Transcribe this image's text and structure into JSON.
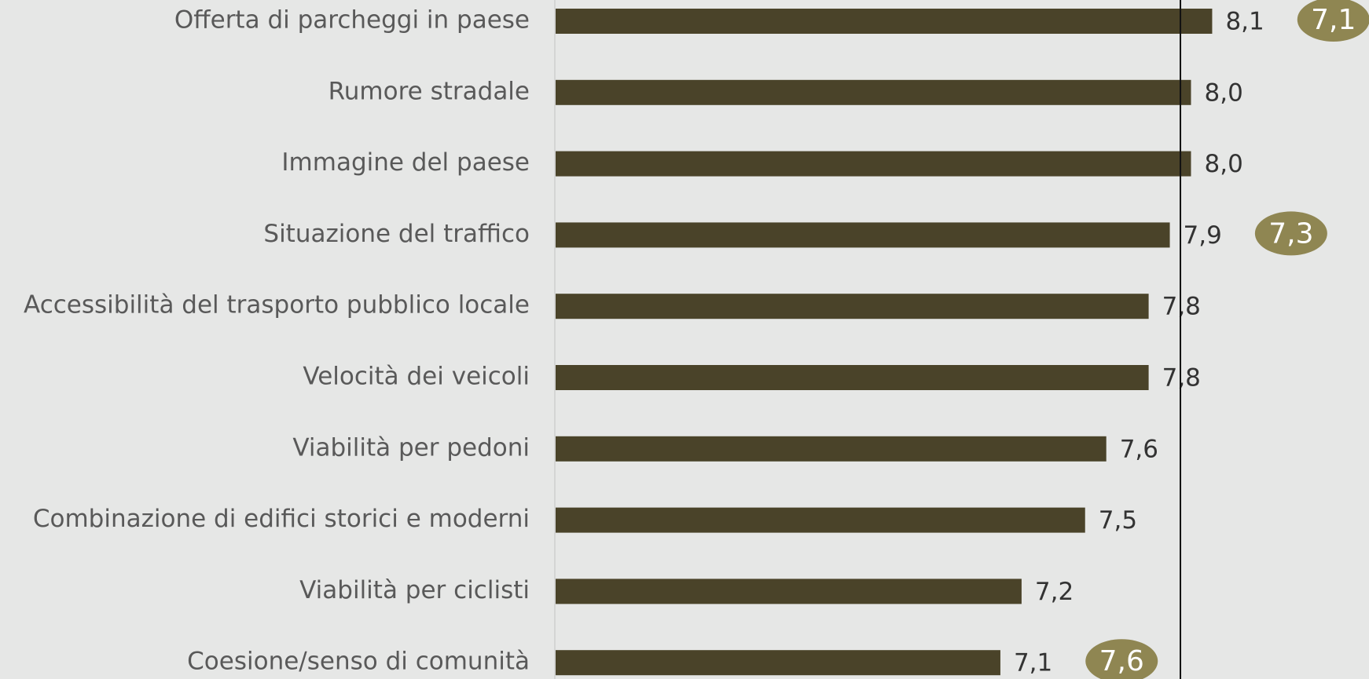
{
  "chart_data": {
    "type": "bar",
    "orientation": "horizontal",
    "categories": [
      "Offerta di parcheggi in paese",
      "Rumore stradale",
      "Immagine del paese",
      "Situazione del traffico",
      "Accessibilità del trasporto pubblico locale",
      "Velocità dei veicoli",
      "Viabilità per pedoni",
      "Combinazione di edifici storici e moderni",
      "Viabilità per ciclisti",
      "Coesione/senso di comunità"
    ],
    "values": [
      8.1,
      8.0,
      8.0,
      7.9,
      7.8,
      7.8,
      7.6,
      7.5,
      7.2,
      7.1
    ],
    "value_labels": [
      "8,1",
      "8,0",
      "8,0",
      "7,9",
      "7,8",
      "7,8",
      "7,6",
      "7,5",
      "7,2",
      "7,1"
    ],
    "color": "#4a4329",
    "xlim": [
      5,
      9
    ],
    "reference_line": 7.95,
    "annotations": [
      {
        "category": "Offerta di parcheggi in paese",
        "label": "7,1"
      },
      {
        "category": "Situazione del traffico",
        "label": "7,3"
      },
      {
        "category": "Coesione/senso di comunità",
        "label": "7,6"
      }
    ],
    "annotation_color": "#8f8652"
  }
}
